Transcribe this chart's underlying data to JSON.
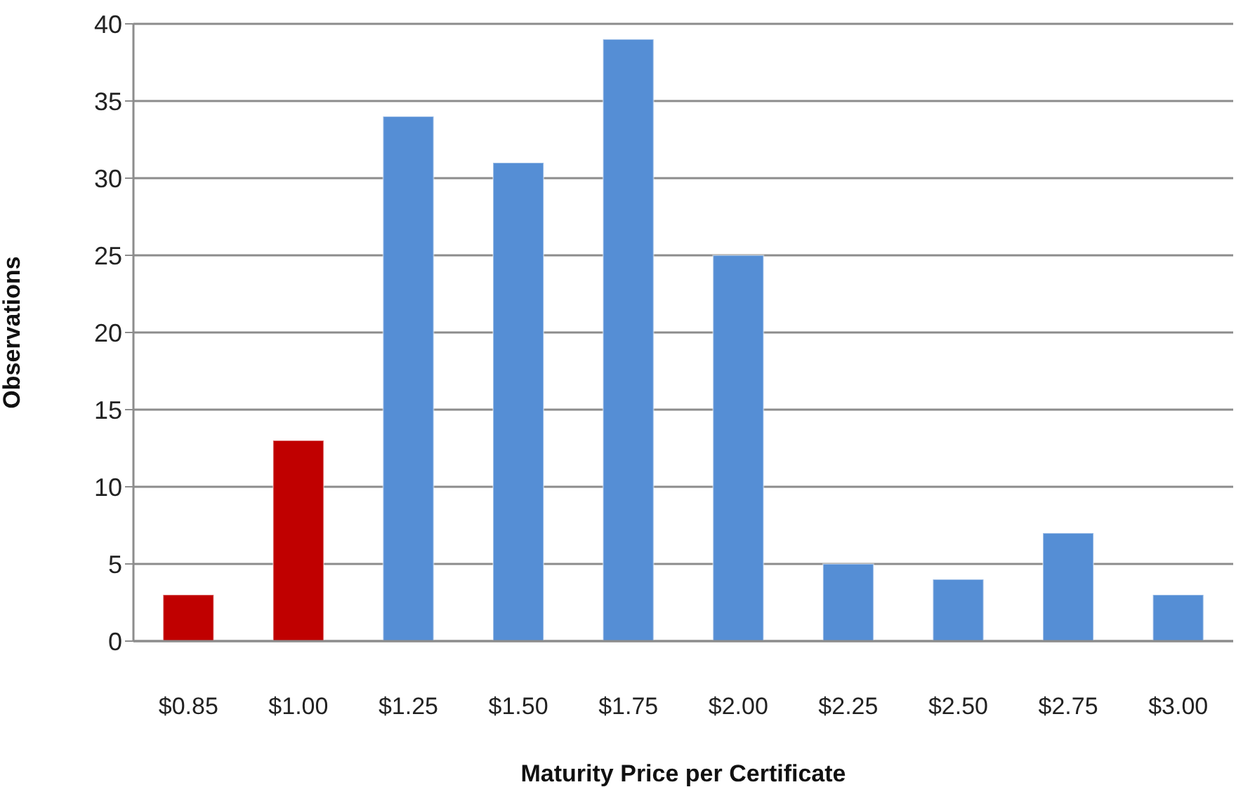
{
  "chart_data": {
    "type": "bar",
    "xlabel": "Maturity Price per Certificate",
    "ylabel": "Observations",
    "categories": [
      "$0.85",
      "$1.00",
      "$1.25",
      "$1.50",
      "$1.75",
      "$2.00",
      "$2.25",
      "$2.50",
      "$2.75",
      "$3.00"
    ],
    "values": [
      3,
      13,
      34,
      31,
      39,
      25,
      5,
      4,
      7,
      3
    ],
    "colors": [
      "#c00000",
      "#c00000",
      "#558ed5",
      "#558ed5",
      "#558ed5",
      "#558ed5",
      "#558ed5",
      "#558ed5",
      "#558ed5",
      "#558ed5"
    ],
    "ylim": [
      0,
      40
    ],
    "yticks": [
      0,
      5,
      10,
      15,
      20,
      25,
      30,
      35,
      40
    ],
    "grid": "y",
    "legend": false
  }
}
